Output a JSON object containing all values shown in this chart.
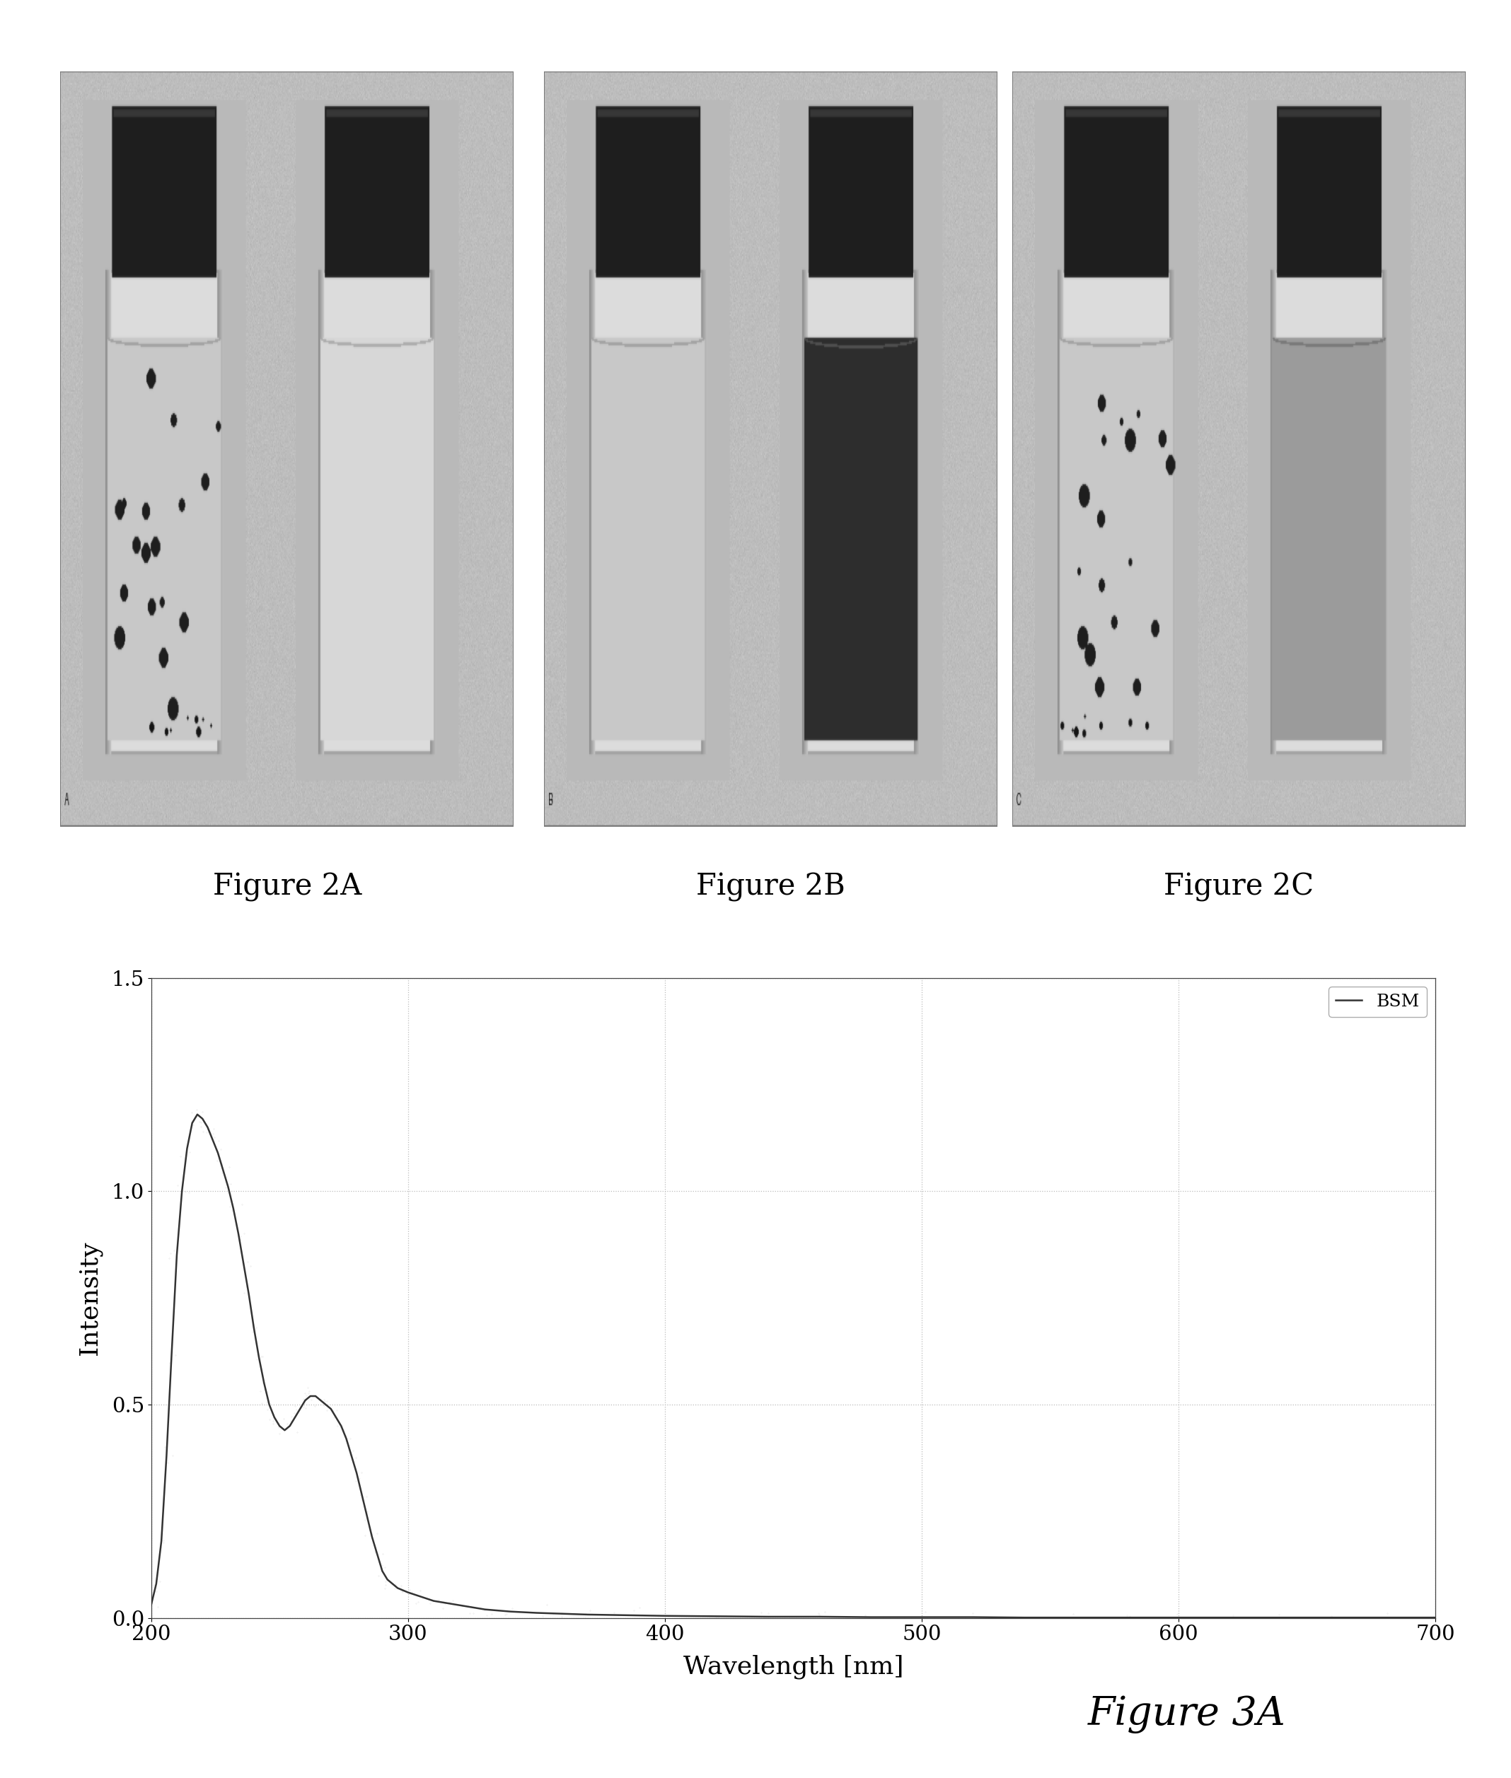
{
  "figure_labels_top": [
    "Figure 2A",
    "Figure 2B",
    "Figure 2C"
  ],
  "figure_label_bottom": "Figure 3A",
  "xlabel": "Wavelength [nm]",
  "ylabel": "Intensity",
  "legend_label": "BSM",
  "xlim": [
    200,
    700
  ],
  "ylim": [
    0,
    1.5
  ],
  "yticks": [
    0,
    0.5,
    1,
    1.5
  ],
  "xticks": [
    200,
    300,
    400,
    500,
    600,
    700
  ],
  "line_color": "#333333",
  "line_width": 1.8,
  "bg_color": "#ffffff",
  "grid_color": "#bbbbbb",
  "grid_style": ":",
  "font_size_label": 26,
  "font_size_axis": 21,
  "font_size_legend": 18,
  "font_size_fig_label": 30,
  "font_size_3a": 40,
  "spectrum_x": [
    200,
    202,
    204,
    206,
    208,
    210,
    212,
    214,
    216,
    218,
    220,
    222,
    224,
    226,
    228,
    230,
    232,
    234,
    236,
    238,
    240,
    242,
    244,
    246,
    248,
    250,
    252,
    254,
    256,
    258,
    260,
    262,
    264,
    266,
    268,
    270,
    272,
    274,
    276,
    278,
    280,
    282,
    284,
    286,
    288,
    290,
    292,
    294,
    296,
    298,
    300,
    305,
    310,
    315,
    320,
    325,
    330,
    340,
    350,
    360,
    370,
    380,
    390,
    400,
    420,
    440,
    460,
    480,
    500,
    520,
    540,
    560,
    580,
    600,
    620,
    640,
    660,
    680,
    700
  ],
  "spectrum_y": [
    0.03,
    0.08,
    0.18,
    0.38,
    0.62,
    0.85,
    1.0,
    1.1,
    1.16,
    1.18,
    1.17,
    1.15,
    1.12,
    1.09,
    1.05,
    1.01,
    0.96,
    0.9,
    0.83,
    0.76,
    0.68,
    0.61,
    0.55,
    0.5,
    0.47,
    0.45,
    0.44,
    0.45,
    0.47,
    0.49,
    0.51,
    0.52,
    0.52,
    0.51,
    0.5,
    0.49,
    0.47,
    0.45,
    0.42,
    0.38,
    0.34,
    0.29,
    0.24,
    0.19,
    0.15,
    0.11,
    0.09,
    0.08,
    0.07,
    0.065,
    0.06,
    0.05,
    0.04,
    0.035,
    0.03,
    0.025,
    0.02,
    0.015,
    0.012,
    0.01,
    0.008,
    0.007,
    0.006,
    0.005,
    0.004,
    0.003,
    0.003,
    0.002,
    0.002,
    0.002,
    0.001,
    0.001,
    0.001,
    0.001,
    0.001,
    0.001,
    0.001,
    0.001,
    0.001
  ]
}
